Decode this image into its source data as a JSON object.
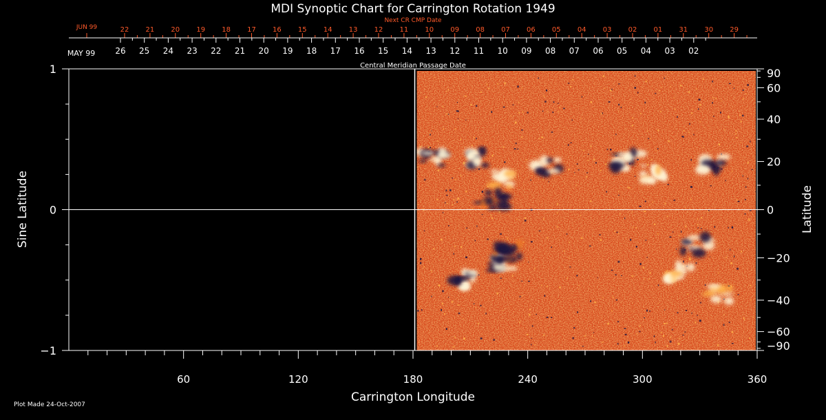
{
  "chart_data": {
    "type": "heatmap",
    "title": "MDI Synoptic Chart for Carrington Rotation 1949",
    "xlabel": "Carrington Longitude",
    "ylabel_left": "Sine Latitude",
    "ylabel_right": "Latitude",
    "xlim": [
      0,
      360
    ],
    "ylim": [
      -1,
      1
    ],
    "x_major_ticks": [
      60,
      120,
      180,
      240,
      300,
      360
    ],
    "x_minor_step": 10,
    "y_left_ticks": [
      {
        "value": 1,
        "label": "1"
      },
      {
        "value": 0,
        "label": "0"
      },
      {
        "value": -1,
        "label": "−1"
      }
    ],
    "y_left_minor_step": 0.25,
    "y_right_ticks": [
      90,
      60,
      40,
      20,
      0,
      -20,
      -40,
      -60,
      -90
    ],
    "y_right_labels": [
      "90",
      "60",
      "40",
      "20",
      "0",
      "−20",
      "−40",
      "−60",
      "−90"
    ],
    "y_right_minor_step": 10,
    "data_coverage_longitude": [
      182,
      360
    ],
    "colors": {
      "background": "#000000",
      "foreground": "#ffffff",
      "next_cr_axis": "#ff5a2a",
      "field_base": "#d8461a",
      "field_mid": "#f07a28",
      "field_hot": "#ffb24a",
      "positive_polarity": "#fff6d8",
      "negative_polarity": "#1a1440"
    },
    "active_regions": [
      {
        "lon": 190,
        "lat": 0.37,
        "polarity": "mixed"
      },
      {
        "lon": 215,
        "lat": 0.37,
        "polarity": "mixed"
      },
      {
        "lon": 225,
        "lat": 0.22,
        "polarity": "positive"
      },
      {
        "lon": 222,
        "lat": 0.07,
        "polarity": "negative"
      },
      {
        "lon": 250,
        "lat": 0.31,
        "polarity": "mixed"
      },
      {
        "lon": 292,
        "lat": 0.35,
        "polarity": "mixed"
      },
      {
        "lon": 305,
        "lat": 0.26,
        "polarity": "positive"
      },
      {
        "lon": 338,
        "lat": 0.33,
        "polarity": "mixed"
      },
      {
        "lon": 225,
        "lat": -0.38,
        "polarity": "mixed"
      },
      {
        "lon": 205,
        "lat": -0.5,
        "polarity": "mixed"
      },
      {
        "lon": 230,
        "lat": -0.3,
        "polarity": "negative"
      },
      {
        "lon": 320,
        "lat": -0.45,
        "polarity": "positive"
      },
      {
        "lon": 340,
        "lat": -0.6,
        "polarity": "positive"
      },
      {
        "lon": 328,
        "lat": -0.25,
        "polarity": "mixed"
      }
    ]
  },
  "top_axis": {
    "label": "Central Meridian Passage Date",
    "month_start": "MAY 99",
    "dates": [
      "26",
      "25",
      "24",
      "23",
      "22",
      "21",
      "20",
      "19",
      "18",
      "17",
      "16",
      "15",
      "14",
      "13",
      "12",
      "11",
      "10",
      "09",
      "08",
      "07",
      "06",
      "05",
      "04",
      "03",
      "02"
    ]
  },
  "next_cr_axis": {
    "label": "Next CR CMP Date",
    "month_start": "JUN 99",
    "dates": [
      "22",
      "21",
      "20",
      "19",
      "18",
      "17",
      "16",
      "15",
      "14",
      "13",
      "12",
      "11",
      "10",
      "09",
      "08",
      "07",
      "06",
      "05",
      "04",
      "03",
      "02",
      "01",
      "31",
      "30",
      "29"
    ]
  },
  "footer": {
    "plot_made": "Plot Made 24-Oct-2007"
  }
}
